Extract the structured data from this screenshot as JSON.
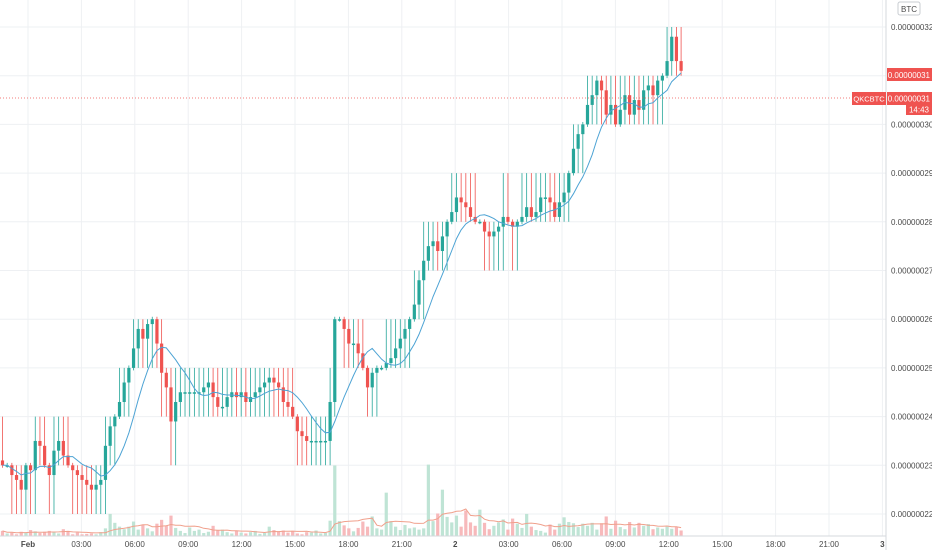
{
  "chart_data": {
    "type": "candlestick",
    "symbol": "QKCBTC",
    "currency": "BTC",
    "ylim": [
      2.15e-07,
      3.26e-07
    ],
    "y_ticks": [
      "0.00000032",
      "0.00000031",
      "0.00000030",
      "0.00000029",
      "0.00000028",
      "0.00000027",
      "0.00000026",
      "0.00000025",
      "0.00000024",
      "0.00000023",
      "0.00000022"
    ],
    "x_ticks": [
      "Feb",
      "03:00",
      "06:00",
      "09:00",
      "12:00",
      "15:00",
      "18:00",
      "21:00",
      "2",
      "03:00",
      "06:00",
      "09:00",
      "12:00",
      "15:00",
      "18:00",
      "21:00",
      "3"
    ],
    "last_price_label": "0.00000031",
    "symbol_price_label": "0.00000031",
    "countdown": "14:43",
    "colors": {
      "up": "#26a69a",
      "down": "#ef5350",
      "up_volume": "#bfe4d5",
      "down_volume": "#f7b9bb",
      "ma": "#4da3d4",
      "volume_ma": "#f0a08c",
      "grid": "#eef0f3",
      "axis_text": "#4a4a4a"
    },
    "close": [
      23,
      23,
      22.8,
      22.7,
      22.5,
      23,
      22.9,
      23.5,
      23.4,
      23,
      22.8,
      23.3,
      23.5,
      23.2,
      23,
      22.9,
      22.8,
      22.7,
      22.6,
      22.5,
      22.6,
      22.7,
      23.4,
      23.8,
      24,
      24.3,
      24.7,
      25,
      25.4,
      25.8,
      25.6,
      25.9,
      26,
      25.5,
      24.9,
      24.6,
      23.9,
      24.3,
      24.5,
      24.5,
      24.5,
      24.5,
      24.5,
      24.6,
      24.7,
      24.4,
      24.2,
      24.2,
      24.4,
      24.5,
      24.4,
      24.5,
      24.3,
      24.4,
      24.5,
      24.6,
      24.7,
      24.8,
      24.7,
      24.6,
      24.3,
      24.2,
      24,
      23.7,
      23.6,
      23.5,
      23.5,
      23.5,
      23.5,
      23.5,
      24.3,
      26,
      26,
      25.8,
      25.5,
      25.5,
      25.3,
      25,
      24.6,
      24.9,
      25,
      25,
      25.1,
      25.2,
      25.4,
      25.6,
      25.8,
      26,
      26.3,
      26.8,
      27.2,
      27.5,
      27.6,
      27.4,
      27.7,
      28,
      28.2,
      28.5,
      28.4,
      28.3,
      28.1,
      28,
      28,
      27.8,
      27.7,
      27.8,
      27.9,
      28.1,
      28,
      27.9,
      28,
      28.1,
      28.3,
      28.1,
      28.2,
      28.5,
      28.5,
      28.4,
      28.1,
      28.4,
      28.6,
      29,
      29.5,
      29.8,
      30,
      30.4,
      30.6,
      30.9,
      30.7,
      30.2,
      30.4,
      30,
      30.3,
      30.6,
      30.2,
      30.5,
      30.3,
      30.7,
      30.8,
      30.6,
      30.9,
      31,
      31.3,
      31.8,
      31.3,
      31.1
    ],
    "volume": [
      1.2,
      0.6,
      0.8,
      0.4,
      1,
      0.8,
      1.4,
      1.1,
      0.7,
      1,
      1.2,
      0.9,
      0.6,
      1.6,
      1.2,
      0.4,
      0.8,
      0.4,
      0.5,
      0.6,
      0.4,
      0.9,
      1.8,
      5.2,
      3.1,
      2.2,
      1.6,
      2.2,
      3.4,
      1.5,
      2.7,
      1.8,
      1.1,
      2.9,
      3.8,
      2.4,
      4.8,
      1.9,
      1.2,
      0.7,
      2,
      1.2,
      1.5,
      0.7,
      1,
      2.4,
      1.3,
      1.5,
      0.9,
      0.6,
      1.2,
      0.8,
      0.6,
      0.9,
      1.2,
      0.5,
      0.7,
      2.2,
      1.4,
      1.1,
      1.3,
      0.8,
      1.2,
      0.6,
      0.4,
      0.9,
      0.8,
      1.3,
      0.6,
      0.7,
      3.6,
      16.6,
      3.5,
      2.5,
      1.8,
      1.1,
      1.9,
      3.4,
      2.2,
      4.6,
      1.8,
      1.5,
      10.2,
      3.5,
      2.2,
      1.4,
      2.6,
      1.8,
      2,
      1.5,
      1.8,
      16.8,
      3.5,
      5.3,
      10.9,
      4.5,
      3.2,
      4.8,
      2.2,
      6,
      3.2,
      2.4,
      6.2,
      3.1,
      1.6,
      2.4,
      3.2,
      3.9,
      1.5,
      4.1,
      2.9,
      1.9,
      5.2,
      2.2,
      1.4,
      1.2,
      0.8,
      2.7,
      1.5,
      2.9,
      4.4,
      3.3,
      3,
      2.1,
      2.9,
      2.4,
      3.1,
      1.5,
      3,
      4.6,
      1.7,
      3.6,
      2.1,
      1.6,
      3.3,
      2,
      3.1,
      2.4,
      2.8,
      1.6,
      2,
      1.7,
      2.2,
      1.7,
      2.1,
      1.3
    ]
  }
}
